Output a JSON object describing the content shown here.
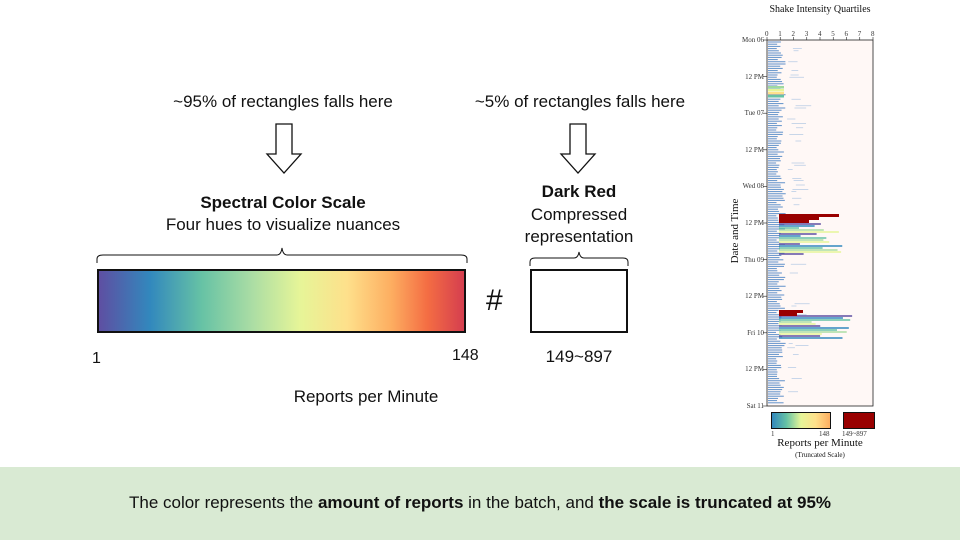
{
  "left_caption": "~95% of rectangles falls here",
  "right_caption": "~5% of rectangles falls here",
  "spectral": {
    "title": "Spectral Color Scale",
    "subtitle": "Four hues to visualize nuances",
    "min_label": "1",
    "max_label": "148",
    "colors": [
      "#5e4fa2",
      "#3288bd",
      "#66c2a5",
      "#abdda4",
      "#e6f598",
      "#fee08b",
      "#fdae61",
      "#f46d43",
      "#d53e4f"
    ]
  },
  "darkred": {
    "title": "Dark Red",
    "line1": "Compressed",
    "line2": "representation",
    "range_label": "149~897",
    "color": "#990000"
  },
  "separator": "#",
  "axis_label": "Reports per Minute",
  "footer": {
    "text_a": "The color represents the ",
    "bold_a": "amount of reports",
    "text_b": " in the batch, and ",
    "bold_b": "the scale is truncated at 95%",
    "background": "#d9ead3"
  },
  "mini_chart": {
    "title": "Shake Intensity Quartiles",
    "x_ticks": [
      "0",
      "1",
      "2",
      "3",
      "4",
      "5",
      "6",
      "7",
      "8"
    ],
    "y_label": "Date and Time",
    "y_ticks": [
      "Mon 06",
      "12 PM",
      "Tue 07",
      "12 PM",
      "Wed 08",
      "12 PM",
      "Thu 09",
      "12 PM",
      "Fri 10",
      "12 PM",
      "Sat 11"
    ],
    "legend_min": "1",
    "legend_mid": "148",
    "legend_max": "149~897",
    "legend_title": "Reports per Minute",
    "legend_subtitle": "(Truncated Scale)"
  }
}
